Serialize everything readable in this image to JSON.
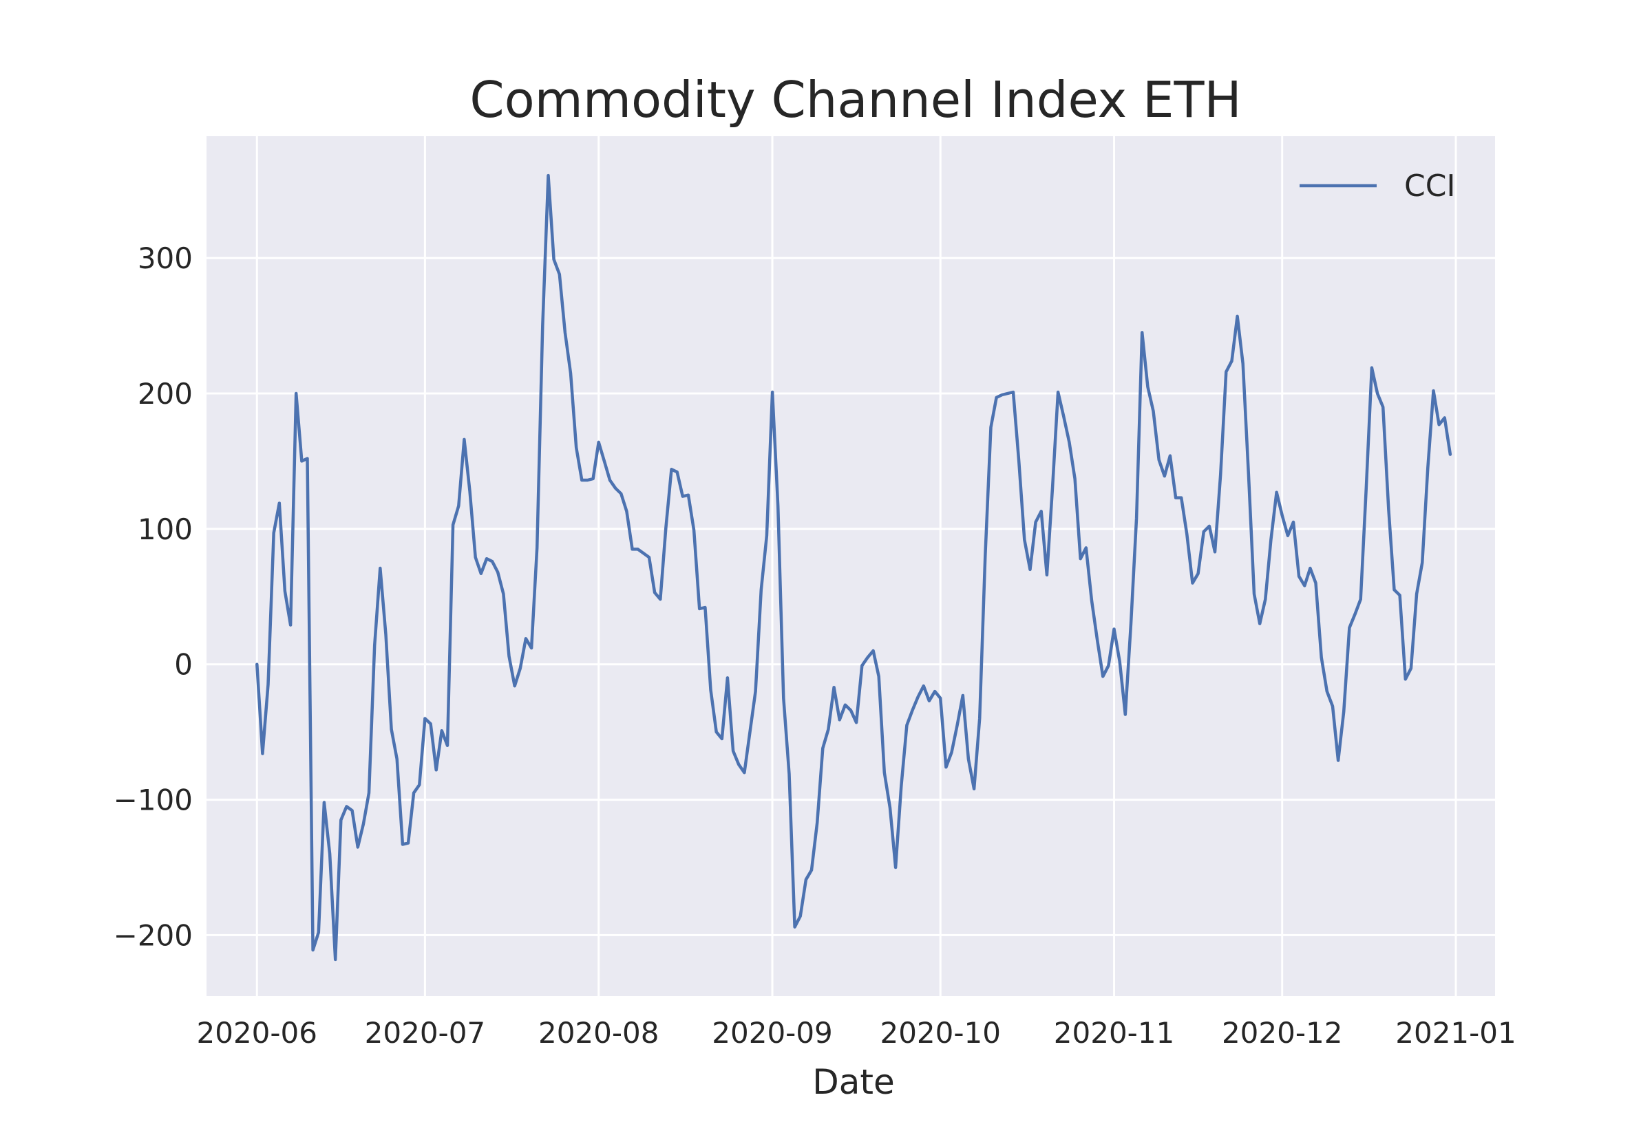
{
  "chart_data": {
    "type": "line",
    "title": "Commodity Channel Index ETH",
    "xlabel": "Date",
    "ylabel": "",
    "x_range": [
      "2020-05-23",
      "2021-01-08"
    ],
    "ylim": [
      -245,
      390
    ],
    "x_ticks": [
      "2020-06",
      "2020-07",
      "2020-08",
      "2020-09",
      "2020-10",
      "2020-11",
      "2020-12",
      "2021-01"
    ],
    "y_ticks": [
      -200,
      -100,
      0,
      100,
      200,
      300
    ],
    "y_tick_labels": [
      "−200",
      "−100",
      "0",
      "100",
      "200",
      "300"
    ],
    "grid": true,
    "legend": {
      "position": "top-right",
      "entries": [
        "CCI"
      ]
    },
    "background": "#eaeaf2",
    "series": [
      {
        "name": "CCI",
        "color": "#4c72b0",
        "points": [
          [
            "2020-06-01",
            0
          ],
          [
            "2020-06-02",
            -66
          ],
          [
            "2020-06-03",
            -15
          ],
          [
            "2020-06-04",
            97
          ],
          [
            "2020-06-05",
            119
          ],
          [
            "2020-06-06",
            54
          ],
          [
            "2020-06-07",
            29
          ],
          [
            "2020-06-08",
            200
          ],
          [
            "2020-06-09",
            150
          ],
          [
            "2020-06-10",
            152
          ],
          [
            "2020-06-11",
            -211
          ],
          [
            "2020-06-12",
            -198
          ],
          [
            "2020-06-13",
            -102
          ],
          [
            "2020-06-14",
            -140
          ],
          [
            "2020-06-15",
            -218
          ],
          [
            "2020-06-16",
            -115
          ],
          [
            "2020-06-17",
            -105
          ],
          [
            "2020-06-18",
            -108
          ],
          [
            "2020-06-19",
            -135
          ],
          [
            "2020-06-20",
            -118
          ],
          [
            "2020-06-21",
            -95
          ],
          [
            "2020-06-22",
            14
          ],
          [
            "2020-06-23",
            71
          ],
          [
            "2020-06-24",
            22
          ],
          [
            "2020-06-25",
            -48
          ],
          [
            "2020-06-26",
            -70
          ],
          [
            "2020-06-27",
            -133
          ],
          [
            "2020-06-28",
            -132
          ],
          [
            "2020-06-29",
            -95
          ],
          [
            "2020-06-30",
            -89
          ],
          [
            "2020-07-01",
            -40
          ],
          [
            "2020-07-02",
            -44
          ],
          [
            "2020-07-03",
            -78
          ],
          [
            "2020-07-04",
            -49
          ],
          [
            "2020-07-05",
            -60
          ],
          [
            "2020-07-06",
            103
          ],
          [
            "2020-07-07",
            117
          ],
          [
            "2020-07-08",
            166
          ],
          [
            "2020-07-09",
            128
          ],
          [
            "2020-07-10",
            79
          ],
          [
            "2020-07-11",
            67
          ],
          [
            "2020-07-12",
            78
          ],
          [
            "2020-07-13",
            76
          ],
          [
            "2020-07-14",
            68
          ],
          [
            "2020-07-15",
            52
          ],
          [
            "2020-07-16",
            6
          ],
          [
            "2020-07-17",
            -16
          ],
          [
            "2020-07-18",
            -3
          ],
          [
            "2020-07-19",
            19
          ],
          [
            "2020-07-20",
            12
          ],
          [
            "2020-07-21",
            86
          ],
          [
            "2020-07-22",
            250
          ],
          [
            "2020-07-23",
            361
          ],
          [
            "2020-07-24",
            299
          ],
          [
            "2020-07-25",
            288
          ],
          [
            "2020-07-26",
            245
          ],
          [
            "2020-07-27",
            215
          ],
          [
            "2020-07-28",
            160
          ],
          [
            "2020-07-29",
            136
          ],
          [
            "2020-07-30",
            136
          ],
          [
            "2020-07-31",
            137
          ],
          [
            "2020-08-01",
            164
          ],
          [
            "2020-08-02",
            150
          ],
          [
            "2020-08-03",
            136
          ],
          [
            "2020-08-04",
            130
          ],
          [
            "2020-08-05",
            126
          ],
          [
            "2020-08-06",
            113
          ],
          [
            "2020-08-07",
            85
          ],
          [
            "2020-08-08",
            85
          ],
          [
            "2020-08-09",
            82
          ],
          [
            "2020-08-10",
            79
          ],
          [
            "2020-08-11",
            53
          ],
          [
            "2020-08-12",
            48
          ],
          [
            "2020-08-13",
            101
          ],
          [
            "2020-08-14",
            144
          ],
          [
            "2020-08-15",
            142
          ],
          [
            "2020-08-16",
            124
          ],
          [
            "2020-08-17",
            125
          ],
          [
            "2020-08-18",
            99
          ],
          [
            "2020-08-19",
            41
          ],
          [
            "2020-08-20",
            42
          ],
          [
            "2020-08-21",
            -19
          ],
          [
            "2020-08-22",
            -50
          ],
          [
            "2020-08-23",
            -55
          ],
          [
            "2020-08-24",
            -10
          ],
          [
            "2020-08-25",
            -64
          ],
          [
            "2020-08-26",
            -74
          ],
          [
            "2020-08-27",
            -80
          ],
          [
            "2020-08-28",
            -50
          ],
          [
            "2020-08-29",
            -20
          ],
          [
            "2020-08-30",
            55
          ],
          [
            "2020-08-31",
            95
          ],
          [
            "2020-09-01",
            201
          ],
          [
            "2020-09-02",
            117
          ],
          [
            "2020-09-03",
            -25
          ],
          [
            "2020-09-04",
            -81
          ],
          [
            "2020-09-05",
            -194
          ],
          [
            "2020-09-06",
            -186
          ],
          [
            "2020-09-07",
            -159
          ],
          [
            "2020-09-08",
            -152
          ],
          [
            "2020-09-09",
            -117
          ],
          [
            "2020-09-10",
            -62
          ],
          [
            "2020-09-11",
            -48
          ],
          [
            "2020-09-12",
            -17
          ],
          [
            "2020-09-13",
            -41
          ],
          [
            "2020-09-14",
            -30
          ],
          [
            "2020-09-15",
            -34
          ],
          [
            "2020-09-16",
            -43
          ],
          [
            "2020-09-17",
            -1
          ],
          [
            "2020-09-18",
            5
          ],
          [
            "2020-09-19",
            10
          ],
          [
            "2020-09-20",
            -9
          ],
          [
            "2020-09-21",
            -80
          ],
          [
            "2020-09-22",
            -106
          ],
          [
            "2020-09-23",
            -150
          ],
          [
            "2020-09-24",
            -90
          ],
          [
            "2020-09-25",
            -45
          ],
          [
            "2020-09-26",
            -34
          ],
          [
            "2020-09-27",
            -24
          ],
          [
            "2020-09-28",
            -16
          ],
          [
            "2020-09-29",
            -27
          ],
          [
            "2020-09-30",
            -20
          ],
          [
            "2020-10-01",
            -25
          ],
          [
            "2020-10-02",
            -76
          ],
          [
            "2020-10-03",
            -65
          ],
          [
            "2020-10-04",
            -45
          ],
          [
            "2020-10-05",
            -23
          ],
          [
            "2020-10-06",
            -70
          ],
          [
            "2020-10-07",
            -92
          ],
          [
            "2020-10-08",
            -40
          ],
          [
            "2020-10-09",
            80
          ],
          [
            "2020-10-10",
            175
          ],
          [
            "2020-10-11",
            197
          ],
          [
            "2020-10-12",
            199
          ],
          [
            "2020-10-13",
            200
          ],
          [
            "2020-10-14",
            201
          ],
          [
            "2020-10-15",
            150
          ],
          [
            "2020-10-16",
            92
          ],
          [
            "2020-10-17",
            70
          ],
          [
            "2020-10-18",
            105
          ],
          [
            "2020-10-19",
            113
          ],
          [
            "2020-10-20",
            66
          ],
          [
            "2020-10-21",
            130
          ],
          [
            "2020-10-22",
            201
          ],
          [
            "2020-10-23",
            183
          ],
          [
            "2020-10-24",
            164
          ],
          [
            "2020-10-25",
            137
          ],
          [
            "2020-10-26",
            78
          ],
          [
            "2020-10-27",
            86
          ],
          [
            "2020-10-28",
            47
          ],
          [
            "2020-10-29",
            18
          ],
          [
            "2020-10-30",
            -9
          ],
          [
            "2020-10-31",
            -1
          ],
          [
            "2020-11-01",
            26
          ],
          [
            "2020-11-02",
            2
          ],
          [
            "2020-11-03",
            -37
          ],
          [
            "2020-11-04",
            30
          ],
          [
            "2020-11-05",
            108
          ],
          [
            "2020-11-06",
            245
          ],
          [
            "2020-11-07",
            205
          ],
          [
            "2020-11-08",
            187
          ],
          [
            "2020-11-09",
            151
          ],
          [
            "2020-11-10",
            139
          ],
          [
            "2020-11-11",
            154
          ],
          [
            "2020-11-12",
            123
          ],
          [
            "2020-11-13",
            123
          ],
          [
            "2020-11-14",
            96
          ],
          [
            "2020-11-15",
            60
          ],
          [
            "2020-11-16",
            67
          ],
          [
            "2020-11-17",
            98
          ],
          [
            "2020-11-18",
            102
          ],
          [
            "2020-11-19",
            83
          ],
          [
            "2020-11-20",
            140
          ],
          [
            "2020-11-21",
            216
          ],
          [
            "2020-11-22",
            224
          ],
          [
            "2020-11-23",
            257
          ],
          [
            "2020-11-24",
            222
          ],
          [
            "2020-11-25",
            140
          ],
          [
            "2020-11-26",
            52
          ],
          [
            "2020-11-27",
            30
          ],
          [
            "2020-11-28",
            48
          ],
          [
            "2020-11-29",
            92
          ],
          [
            "2020-11-30",
            127
          ],
          [
            "2020-12-01",
            110
          ],
          [
            "2020-12-02",
            95
          ],
          [
            "2020-12-03",
            105
          ],
          [
            "2020-12-04",
            65
          ],
          [
            "2020-12-05",
            58
          ],
          [
            "2020-12-06",
            71
          ],
          [
            "2020-12-07",
            60
          ],
          [
            "2020-12-08",
            5
          ],
          [
            "2020-12-09",
            -20
          ],
          [
            "2020-12-10",
            -31
          ],
          [
            "2020-12-11",
            -71
          ],
          [
            "2020-12-12",
            -35
          ],
          [
            "2020-12-13",
            27
          ],
          [
            "2020-12-14",
            37
          ],
          [
            "2020-12-15",
            48
          ],
          [
            "2020-12-16",
            130
          ],
          [
            "2020-12-17",
            219
          ],
          [
            "2020-12-18",
            200
          ],
          [
            "2020-12-19",
            190
          ],
          [
            "2020-12-20",
            114
          ],
          [
            "2020-12-21",
            55
          ],
          [
            "2020-12-22",
            51
          ],
          [
            "2020-12-23",
            -11
          ],
          [
            "2020-12-24",
            -3
          ],
          [
            "2020-12-25",
            52
          ],
          [
            "2020-12-26",
            75
          ],
          [
            "2020-12-27",
            145
          ],
          [
            "2020-12-28",
            202
          ],
          [
            "2020-12-29",
            177
          ],
          [
            "2020-12-30",
            182
          ],
          [
            "2020-12-31",
            155
          ]
        ]
      }
    ]
  }
}
